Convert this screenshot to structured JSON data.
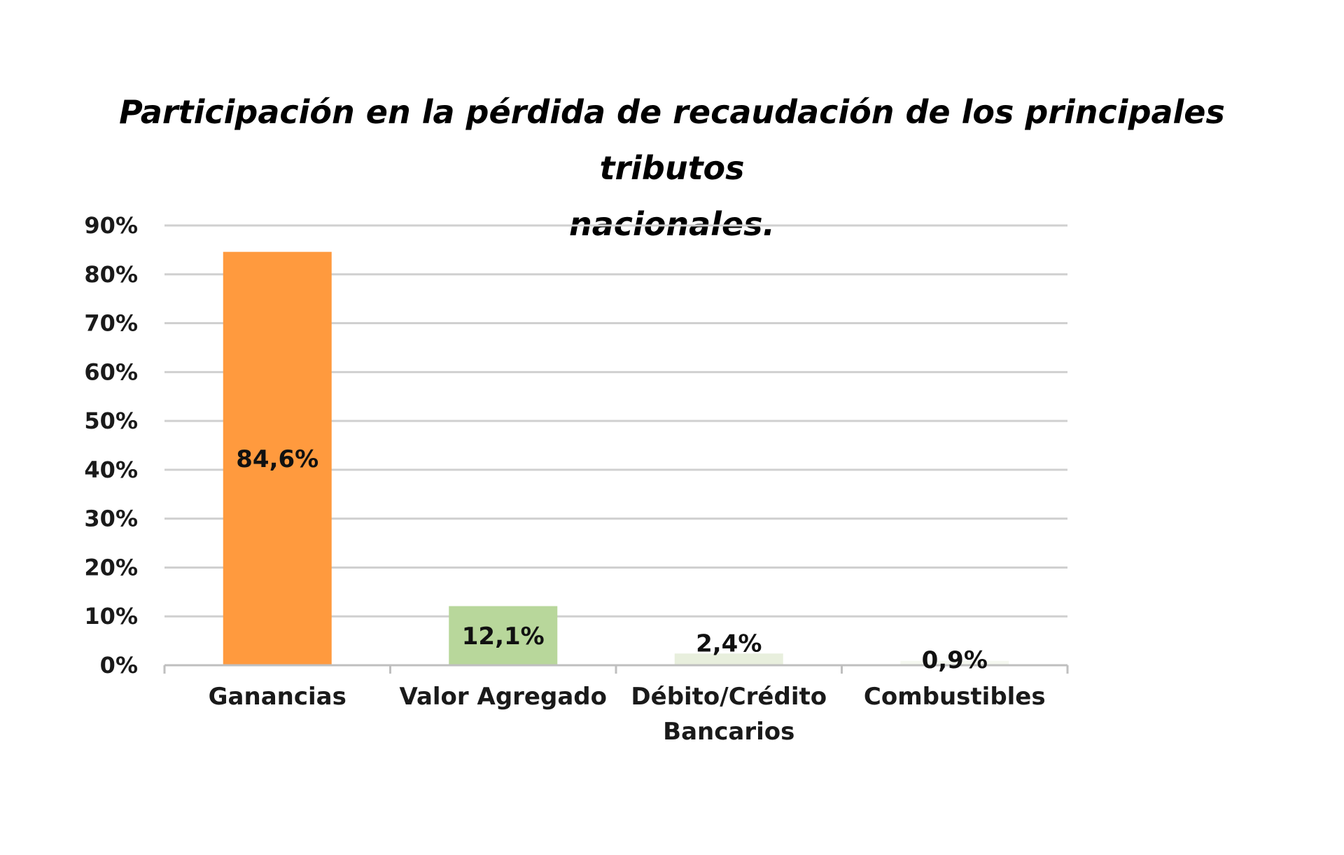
{
  "chart_data": {
    "type": "bar",
    "title_lines": [
      "Participación en la pérdida de recaudación de los principales tributos",
      "nacionales."
    ],
    "categories": [
      [
        "Ganancias"
      ],
      [
        "Valor Agregado"
      ],
      [
        "Débito/Crédito",
        "Bancarios"
      ],
      [
        "Combustibles"
      ]
    ],
    "values": [
      84.6,
      12.1,
      2.4,
      0.9
    ],
    "data_labels": [
      "84,6%",
      "12,1%",
      "2,4%",
      "0,9%"
    ],
    "bar_colors": [
      "#FF9A3E",
      "#B8D79B",
      "#E8EFDD",
      "#F5F8F0"
    ],
    "ylim": [
      0,
      90
    ],
    "yticks": [
      "0%",
      "10%",
      "20%",
      "30%",
      "40%",
      "50%",
      "60%",
      "70%",
      "80%",
      "90%"
    ],
    "grid": true,
    "grid_color": "#D0D0D0",
    "axis_color": "#BFBFBF",
    "xlabel": "",
    "ylabel": ""
  }
}
